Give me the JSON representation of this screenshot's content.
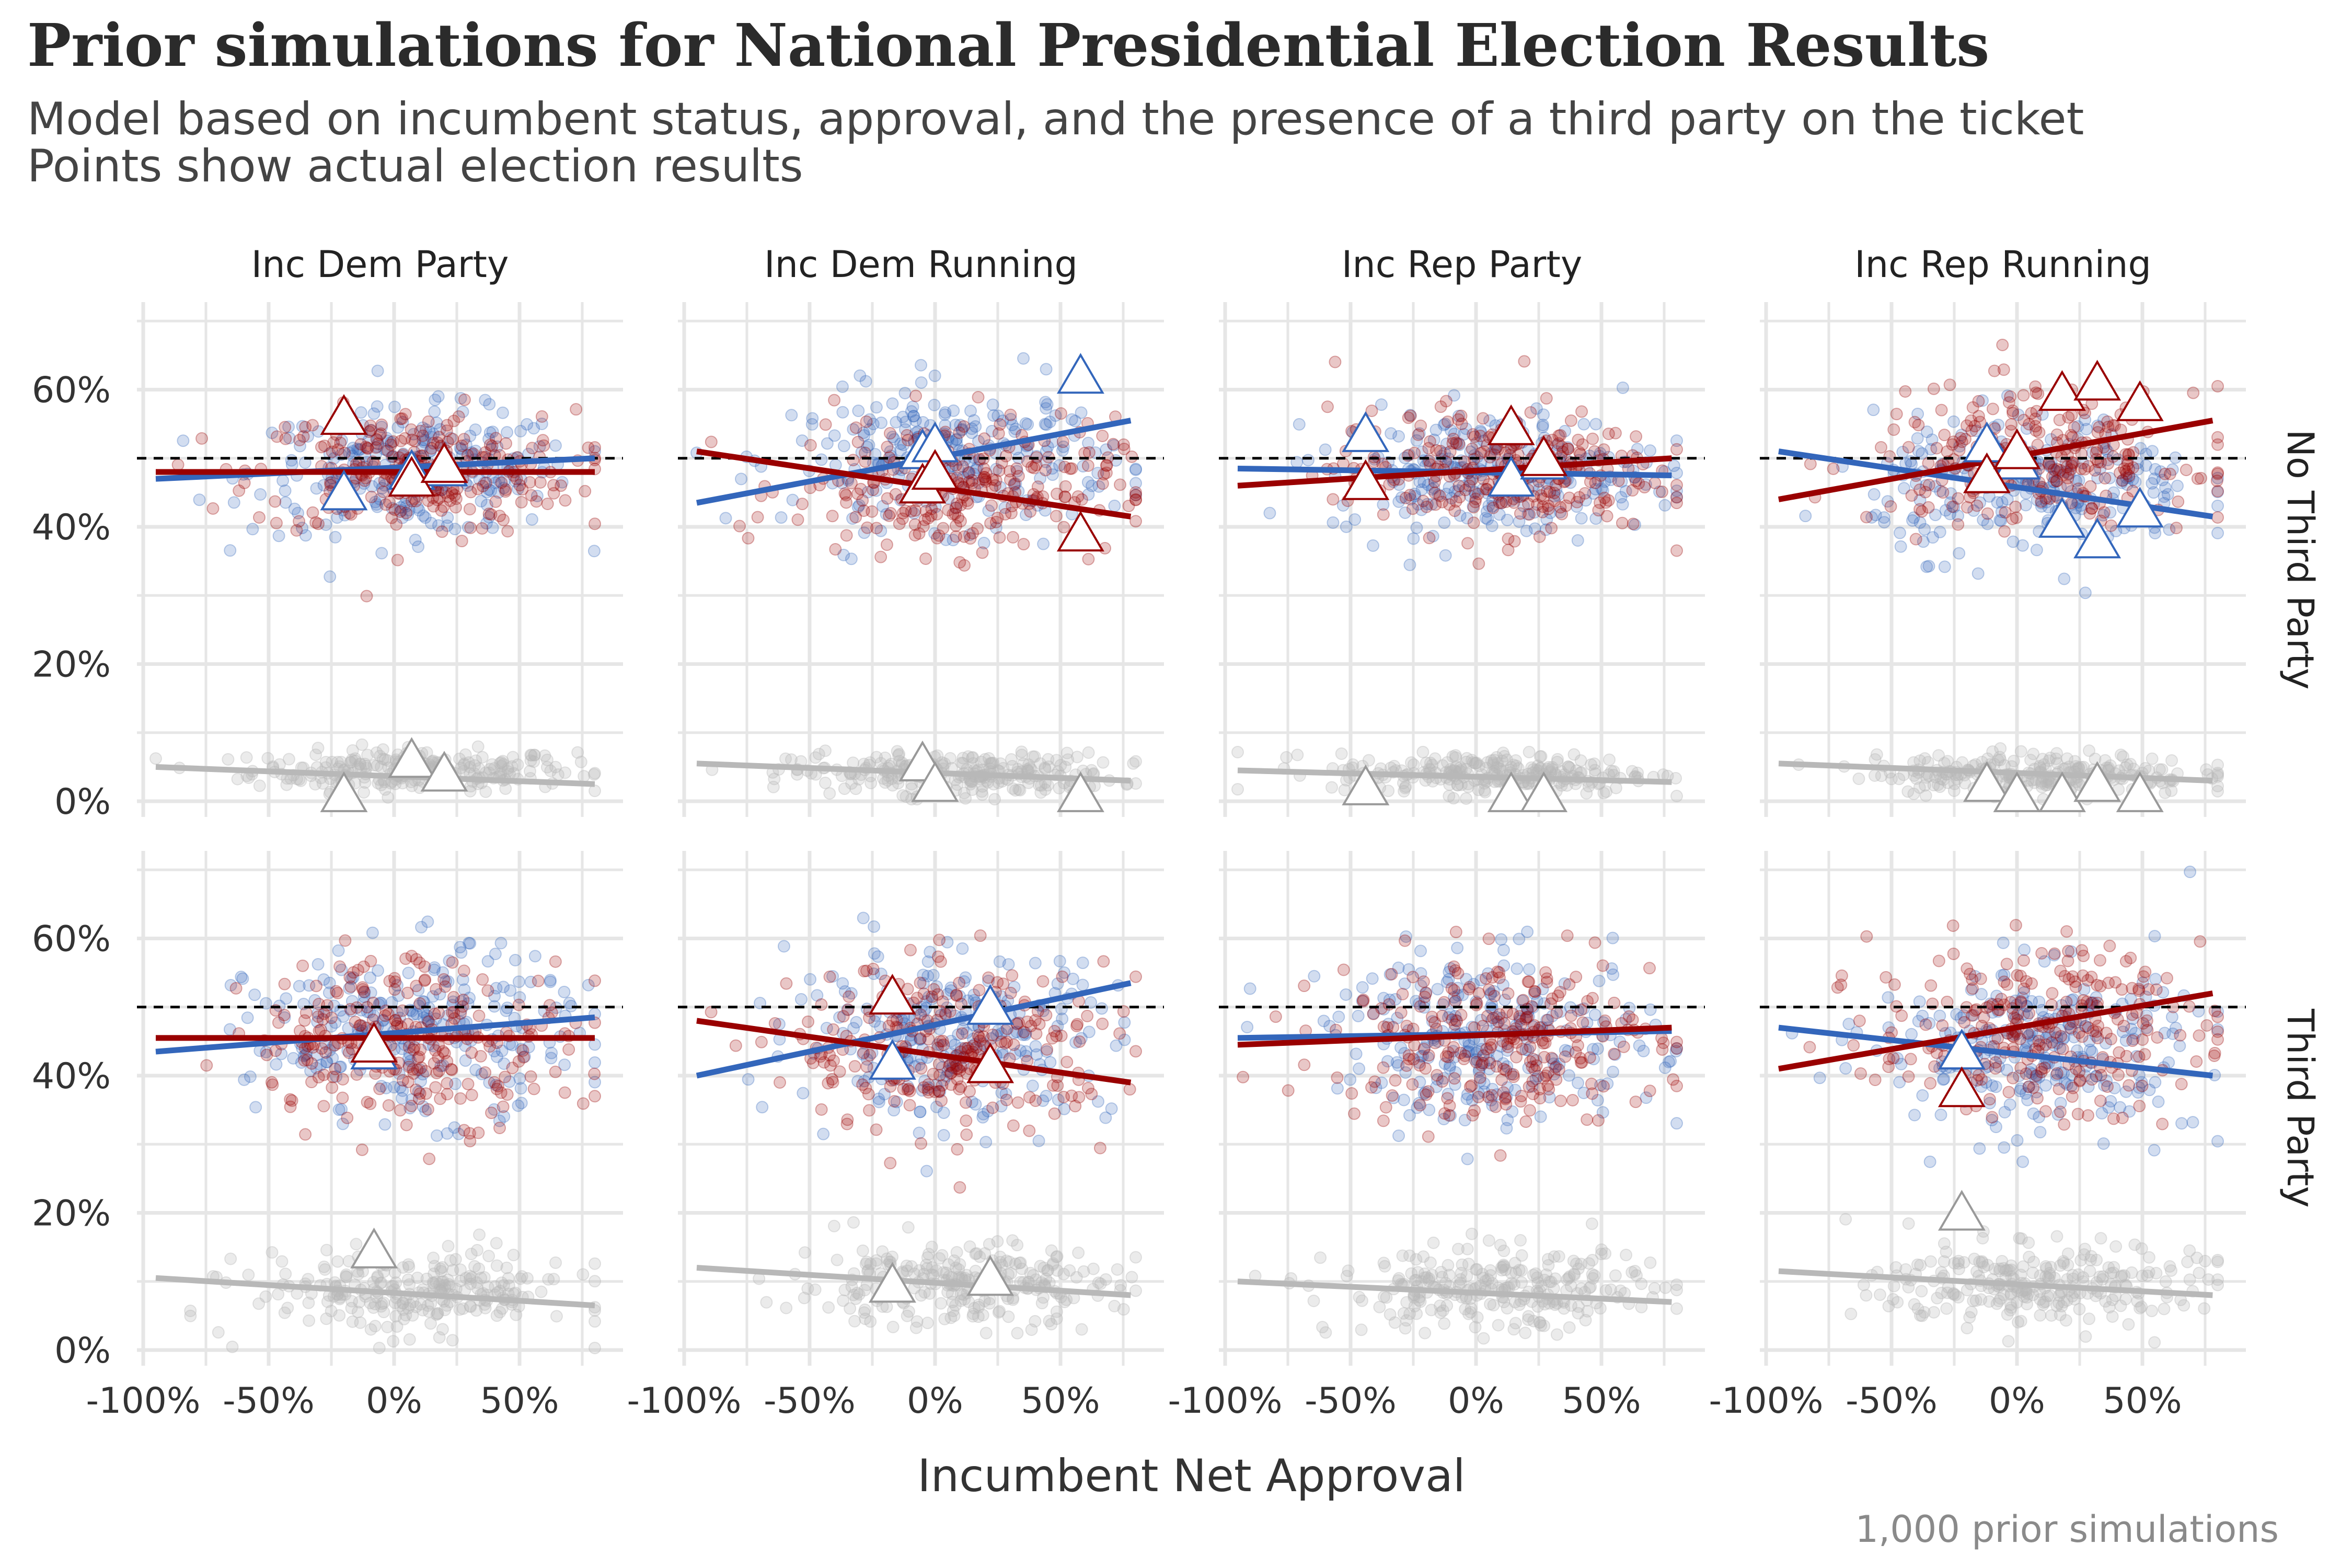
{
  "title": "Prior simulations for National Presidential Election Results",
  "subtitle_line1": "Model based on incumbent status, approval, and the presence of a third party on the ticket",
  "subtitle_line2": "Points show actual election results",
  "caption": "1,000 prior simulations",
  "colors": {
    "dem": "#3366bb",
    "rep": "#990000",
    "third": "#b8b8b8",
    "ref": "#000000"
  },
  "chart_data": {
    "type": "scatter",
    "xlabel": "Incumbent Net Approval",
    "ylabel": "",
    "xlim": [
      -100,
      85
    ],
    "ylim": [
      0,
      72
    ],
    "x_ticks": [
      "-100%",
      "-50%",
      "0%",
      "50%"
    ],
    "y_ticks": [
      "0%",
      "20%",
      "40%",
      "60%"
    ],
    "reference_line_y": 50,
    "columns": [
      "Inc Dem Party",
      "Inc Dem Running",
      "Inc Rep Party",
      "Inc Rep Running"
    ],
    "rows": [
      "No Third Party",
      "Third Party"
    ],
    "simulations": 1000,
    "panels": [
      {
        "row": "No Third Party",
        "col": "Inc Dem Party",
        "cloud": {
          "x_range": [
            -60,
            75
          ],
          "dem_y": 48,
          "rep_y": 48,
          "third_y": 4.5,
          "spread": 4.5,
          "third_spread": 1.5
        },
        "fit": {
          "dem": [
            [
              -95,
              47
            ],
            [
              80,
              50
            ]
          ],
          "rep": [
            [
              -95,
              48
            ],
            [
              80,
              48
            ]
          ],
          "third": [
            [
              -95,
              5
            ],
            [
              80,
              2.5
            ]
          ]
        },
        "actual": {
          "dem": [
            [
              -20,
              45
            ],
            [
              7,
              48
            ],
            [
              20,
              48.5
            ]
          ],
          "rep": [
            [
              -20,
              56
            ],
            [
              7,
              47
            ],
            [
              20,
              49
            ]
          ],
          "third": [
            [
              -20,
              1
            ],
            [
              7,
              6
            ],
            [
              20,
              4
            ]
          ]
        }
      },
      {
        "row": "No Third Party",
        "col": "Inc Dem Running",
        "cloud": {
          "x_range": [
            -60,
            75
          ],
          "dem_y": 50,
          "rep_y": 46,
          "third_y": 4,
          "spread": 5,
          "third_spread": 1.5
        },
        "fit": {
          "dem": [
            [
              -95,
              43.5
            ],
            [
              78,
              55.5
            ]
          ],
          "rep": [
            [
              -95,
              51
            ],
            [
              78,
              41.5
            ]
          ],
          "third": [
            [
              -95,
              5.5
            ],
            [
              78,
              3
            ]
          ]
        },
        "actual": {
          "dem": [
            [
              -5,
              51
            ],
            [
              0,
              52
            ],
            [
              58,
              62
            ]
          ],
          "rep": [
            [
              -5,
              46
            ],
            [
              0,
              48
            ],
            [
              58,
              39
            ]
          ],
          "third": [
            [
              -5,
              5.5
            ],
            [
              0,
              2.5
            ],
            [
              58,
              1
            ]
          ]
        }
      },
      {
        "row": "No Third Party",
        "col": "Inc Rep Party",
        "cloud": {
          "x_range": [
            -60,
            75
          ],
          "dem_y": 48,
          "rep_y": 48,
          "third_y": 4,
          "spread": 4.5,
          "third_spread": 1.5
        },
        "fit": {
          "dem": [
            [
              -95,
              48.5
            ],
            [
              78,
              47.5
            ]
          ],
          "rep": [
            [
              -95,
              46
            ],
            [
              78,
              50
            ]
          ],
          "third": [
            [
              -95,
              4.5
            ],
            [
              78,
              2.8
            ]
          ]
        },
        "actual": {
          "dem": [
            [
              -44,
              53.5
            ],
            [
              14,
              47
            ],
            [
              27,
              49.5
            ]
          ],
          "rep": [
            [
              -44,
              46.5
            ],
            [
              14,
              54.5
            ],
            [
              27,
              50
            ]
          ],
          "third": [
            [
              -44,
              2
            ],
            [
              14,
              1
            ],
            [
              27,
              1
            ]
          ]
        }
      },
      {
        "row": "No Third Party",
        "col": "Inc Rep Running",
        "cloud": {
          "x_range": [
            -60,
            75
          ],
          "dem_y": 46,
          "rep_y": 50,
          "third_y": 4,
          "spread": 5,
          "third_spread": 1.5
        },
        "fit": {
          "dem": [
            [
              -95,
              51
            ],
            [
              78,
              41.5
            ]
          ],
          "rep": [
            [
              -95,
              44
            ],
            [
              78,
              55.5
            ]
          ],
          "third": [
            [
              -95,
              5.5
            ],
            [
              78,
              3
            ]
          ]
        },
        "actual": {
          "dem": [
            [
              -12,
              52
            ],
            [
              0,
              49.5
            ],
            [
              18,
              41
            ],
            [
              32,
              38
            ],
            [
              49,
              42.5
            ]
          ],
          "rep": [
            [
              -12,
              47.5
            ],
            [
              0,
              51
            ],
            [
              18,
              59.5
            ],
            [
              32,
              61
            ],
            [
              49,
              58
            ]
          ],
          "third": [
            [
              -12,
              2.5
            ],
            [
              0,
              1
            ],
            [
              18,
              1
            ],
            [
              32,
              2.5
            ],
            [
              49,
              1
            ]
          ]
        }
      },
      {
        "row": "Third Party",
        "col": "Inc Dem Party",
        "cloud": {
          "x_range": [
            -60,
            75
          ],
          "dem_y": 46,
          "rep_y": 45.5,
          "third_y": 8.5,
          "spread": 6,
          "third_spread": 3
        },
        "fit": {
          "dem": [
            [
              -95,
              43.5
            ],
            [
              80,
              48.5
            ]
          ],
          "rep": [
            [
              -95,
              45.5
            ],
            [
              80,
              45.5
            ]
          ],
          "third": [
            [
              -95,
              10.5
            ],
            [
              80,
              6.5
            ]
          ]
        },
        "actual": {
          "dem": [
            [
              -8,
              43.5
            ]
          ],
          "rep": [
            [
              -8,
              44.5
            ]
          ],
          "third": [
            [
              -8,
              14.5
            ]
          ]
        }
      },
      {
        "row": "Third Party",
        "col": "Inc Dem Running",
        "cloud": {
          "x_range": [
            -60,
            75
          ],
          "dem_y": 46,
          "rep_y": 44,
          "third_y": 9.5,
          "spread": 6,
          "third_spread": 3
        },
        "fit": {
          "dem": [
            [
              -95,
              40
            ],
            [
              78,
              53.5
            ]
          ],
          "rep": [
            [
              -95,
              48
            ],
            [
              78,
              39
            ]
          ],
          "third": [
            [
              -95,
              12
            ],
            [
              78,
              8
            ]
          ]
        },
        "actual": {
          "dem": [
            [
              -17,
              42
            ],
            [
              22,
              50
            ]
          ],
          "rep": [
            [
              -17,
              51.5
            ],
            [
              22,
              41.5
            ]
          ],
          "third": [
            [
              -17,
              9.5
            ],
            [
              22,
              10.5
            ]
          ]
        }
      },
      {
        "row": "Third Party",
        "col": "Inc Rep Party",
        "cloud": {
          "x_range": [
            -60,
            75
          ],
          "dem_y": 45.5,
          "rep_y": 45.5,
          "third_y": 8.5,
          "spread": 6,
          "third_spread": 3
        },
        "fit": {
          "dem": [
            [
              -95,
              45.5
            ],
            [
              78,
              46.5
            ]
          ],
          "rep": [
            [
              -95,
              44.5
            ],
            [
              78,
              47
            ]
          ],
          "third": [
            [
              -95,
              10
            ],
            [
              78,
              7
            ]
          ]
        },
        "actual": {
          "dem": [],
          "rep": [],
          "third": []
        }
      },
      {
        "row": "Third Party",
        "col": "Inc Rep Running",
        "cloud": {
          "x_range": [
            -60,
            75
          ],
          "dem_y": 44,
          "rep_y": 46.5,
          "third_y": 9.5,
          "spread": 6,
          "third_spread": 3
        },
        "fit": {
          "dem": [
            [
              -95,
              47
            ],
            [
              78,
              40
            ]
          ],
          "rep": [
            [
              -95,
              41
            ],
            [
              78,
              52
            ]
          ],
          "third": [
            [
              -95,
              11.5
            ],
            [
              78,
              8
            ]
          ]
        },
        "actual": {
          "dem": [
            [
              -22,
              43.5
            ]
          ],
          "rep": [
            [
              -22,
              38
            ]
          ],
          "third": [
            [
              -22,
              20
            ]
          ]
        }
      }
    ]
  }
}
